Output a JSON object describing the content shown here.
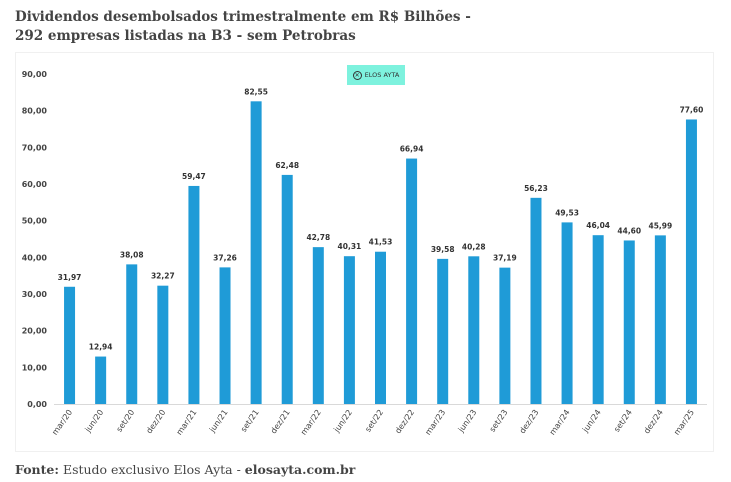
{
  "title": "Dividendos desembolsados trimestralmente em R$ Bilhões - 292 empresas listadas na B3 - sem Petrobras",
  "badge": {
    "text": "ELOS AYTA",
    "icon": "elos-ayta-logo-icon"
  },
  "footer": {
    "label": "Fonte:",
    "text": " Estudo exclusivo Elos Ayta - ",
    "site": "elosayta.com.br"
  },
  "chart_data": {
    "type": "bar",
    "title": "Dividendos desembolsados trimestralmente em R$ Bilhões - 292 empresas listadas na B3 - sem Petrobras",
    "xlabel": "",
    "ylabel": "",
    "ylim": [
      0,
      90
    ],
    "yticks": [
      "0,00",
      "10,00",
      "20,00",
      "30,00",
      "40,00",
      "50,00",
      "60,00",
      "70,00",
      "80,00",
      "90,00"
    ],
    "grid": false,
    "legend": "none",
    "color": "#1f9bd7",
    "categories": [
      "mar/20",
      "jun/20",
      "set/20",
      "dez/20",
      "mar/21",
      "jun/21",
      "set/21",
      "dez/21",
      "mar/22",
      "jun/22",
      "set/22",
      "dez/22",
      "mar/23",
      "jun/23",
      "set/23",
      "dez/23",
      "mar/24",
      "jun/24",
      "set/24",
      "dez/24",
      "mar/25"
    ],
    "values": [
      31.97,
      12.94,
      38.08,
      32.27,
      59.47,
      37.26,
      82.55,
      62.48,
      42.78,
      40.31,
      41.53,
      66.94,
      39.58,
      40.28,
      37.19,
      56.23,
      49.53,
      46.04,
      44.6,
      45.99,
      77.6
    ],
    "labels": [
      "31,97",
      "12,94",
      "38,08",
      "32,27",
      "59,47",
      "37,26",
      "82,55",
      "62,48",
      "42,78",
      "40,31",
      "41,53",
      "66,94",
      "39,58",
      "40,28",
      "37,19",
      "56,23",
      "49,53",
      "46,04",
      "44,60",
      "45,99",
      "77,60"
    ]
  }
}
